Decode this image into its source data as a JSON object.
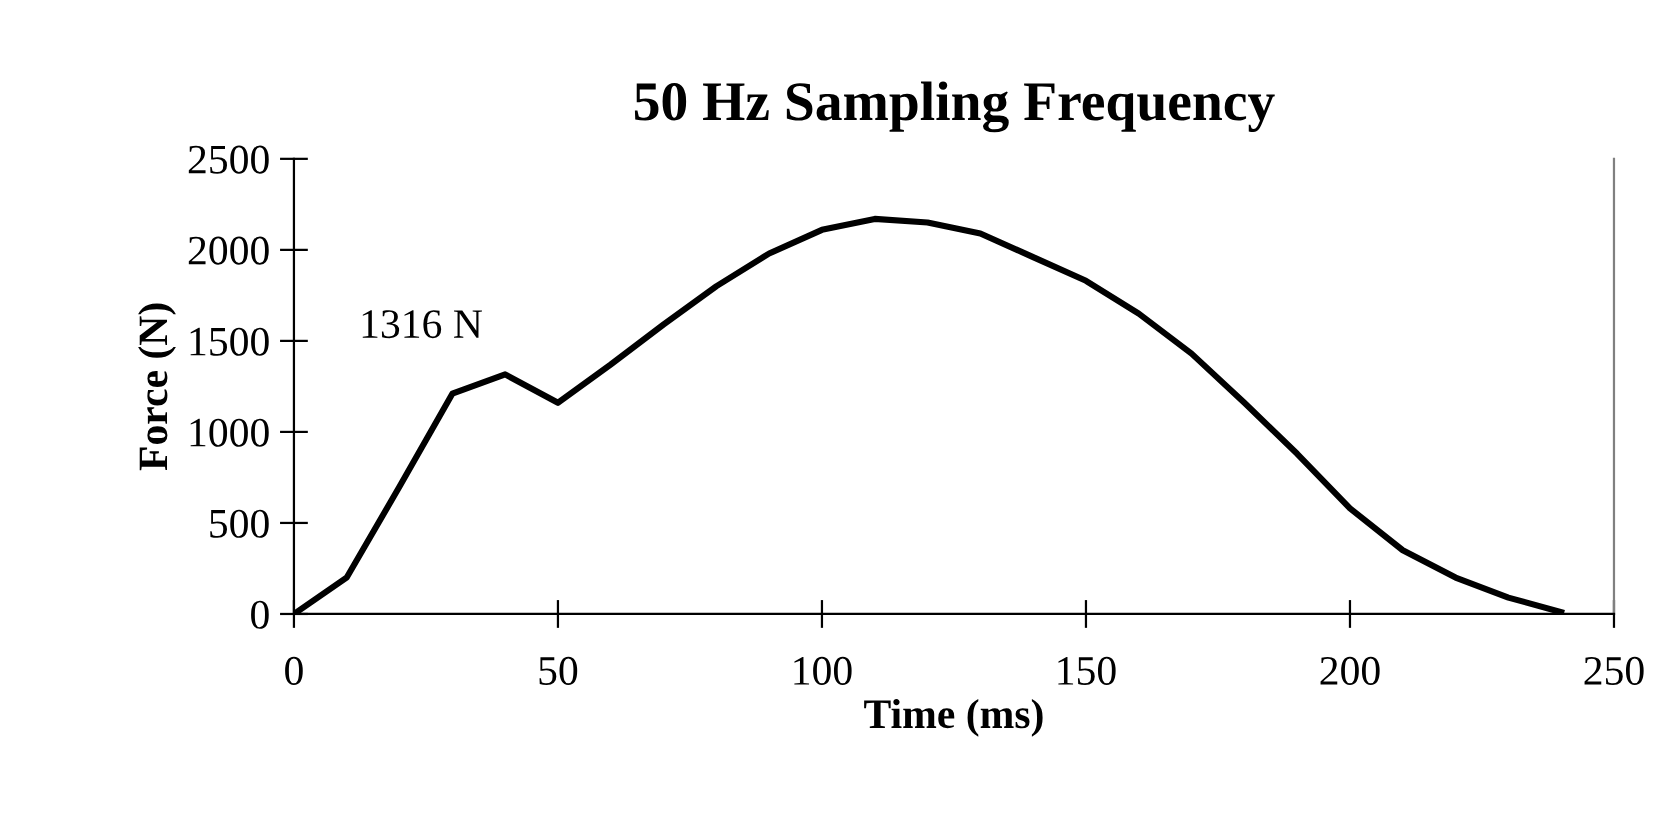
{
  "chart_data": {
    "type": "line",
    "title": "50 Hz Sampling Frequency",
    "xlabel": "Time (ms)",
    "ylabel": "Force (N)",
    "x": [
      0,
      10,
      20,
      30,
      40,
      50,
      60,
      70,
      80,
      90,
      100,
      110,
      120,
      130,
      140,
      150,
      160,
      170,
      180,
      190,
      200,
      210,
      220,
      230,
      240
    ],
    "series": [
      {
        "color": "#000000",
        "values": [
          0,
          200,
          700,
          1210,
          1316,
          1160,
          1370,
          1590,
          1800,
          1980,
          2110,
          2170,
          2150,
          2090,
          1960,
          1830,
          1650,
          1430,
          1160,
          880,
          580,
          350,
          200,
          90,
          10
        ]
      }
    ],
    "annotations": [
      {
        "text": "1316 N",
        "x": 40,
        "y": 1316
      }
    ],
    "xlim": [
      0,
      250
    ],
    "ylim": [
      0,
      2500
    ],
    "xticks": [
      0,
      50,
      100,
      150,
      200,
      250
    ],
    "yticks": [
      0,
      500,
      1000,
      1500,
      2000,
      2500
    ],
    "grid": false,
    "legend": false,
    "marker": "none",
    "line_style": "solid"
  }
}
